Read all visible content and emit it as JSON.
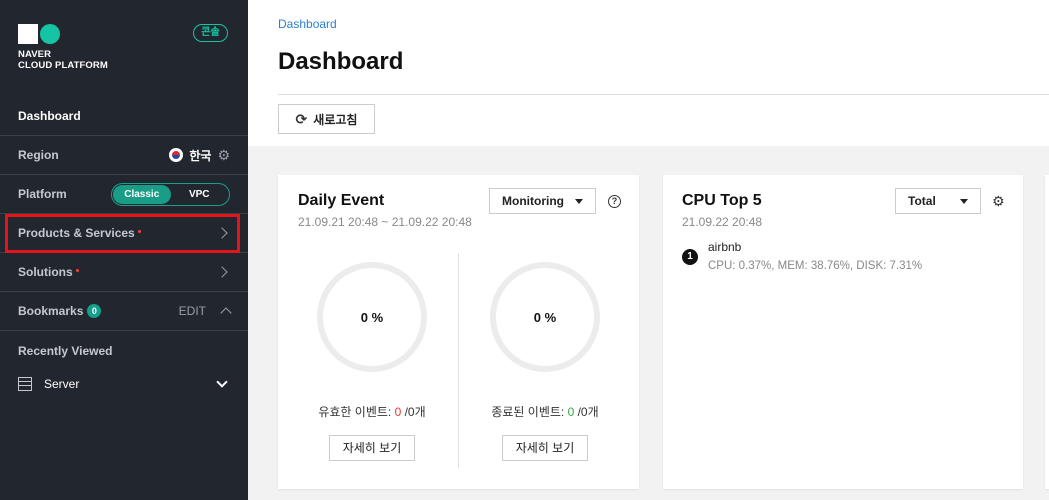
{
  "sidebar": {
    "logo_line1": "NAVER",
    "logo_line2": "CLOUD PLATFORM",
    "console_badge": "콘솔",
    "dashboard_label": "Dashboard",
    "region_label": "Region",
    "region_value": "한국",
    "platform_label": "Platform",
    "platform_options": [
      "Classic",
      "VPC"
    ],
    "platform_selected": "Classic",
    "products_label": "Products & Services",
    "solutions_label": "Solutions",
    "bookmarks_label": "Bookmarks",
    "bookmarks_count": "0",
    "edit_label": "EDIT",
    "recently_viewed_label": "Recently Viewed",
    "server_label": "Server"
  },
  "header": {
    "breadcrumb": "Dashboard",
    "title": "Dashboard",
    "refresh_label": "새로고침"
  },
  "daily_event": {
    "title": "Daily Event",
    "date_range": "21.09.21 20:48 ~ 21.09.22 20:48",
    "filter_value": "Monitoring",
    "help_glyph": "?",
    "valid": {
      "percent": "0 %",
      "label_prefix": "유효한 이벤트: ",
      "count": "0",
      "label_suffix": " /0개",
      "button": "자세히 보기"
    },
    "closed": {
      "percent": "0 %",
      "label_prefix": "종료된 이벤트: ",
      "count": "0",
      "label_suffix": " /0개",
      "button": "자세히 보기"
    }
  },
  "cpu_top5": {
    "title": "CPU Top 5",
    "date": "21.09.22 20:48",
    "filter_value": "Total",
    "items": [
      {
        "rank": "1",
        "name": "airbnb",
        "stats": "CPU: 0.37%, MEM: 38.76%, DISK: 7.31%"
      }
    ]
  },
  "colors": {
    "accent": "#14c4a4",
    "sidebar_bg": "#22262e",
    "highlight": "#e6131b",
    "link": "#2b7fd1"
  },
  "icons": {
    "settings": "gear-icon",
    "refresh": "refresh-icon",
    "help": "help-icon",
    "server": "server-icon"
  }
}
